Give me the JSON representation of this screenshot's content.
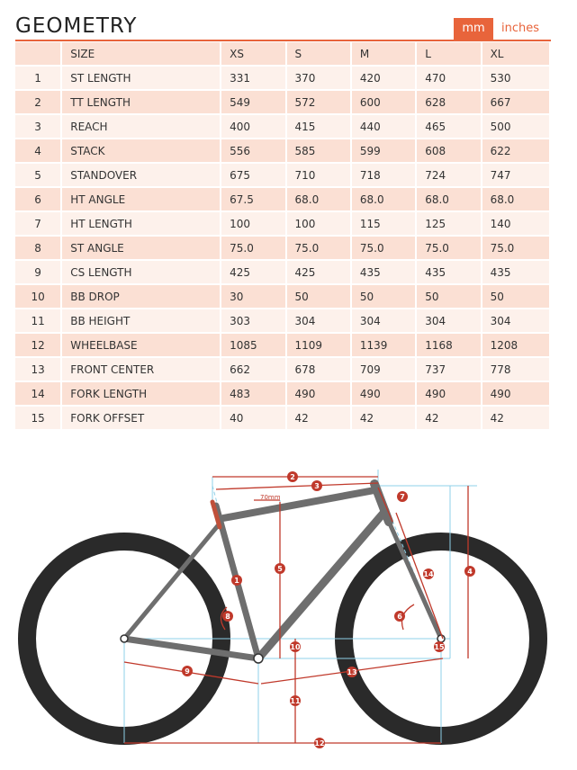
{
  "header": {
    "title": "GEOMETRY",
    "unit_mm": "mm",
    "unit_inches": "inches"
  },
  "table": {
    "columns": [
      "",
      "SIZE",
      "XS",
      "S",
      "M",
      "L",
      "XL"
    ],
    "rows": [
      [
        "1",
        "ST LENGTH",
        "331",
        "370",
        "420",
        "470",
        "530"
      ],
      [
        "2",
        "TT LENGTH",
        "549",
        "572",
        "600",
        "628",
        "667"
      ],
      [
        "3",
        "REACH",
        "400",
        "415",
        "440",
        "465",
        "500"
      ],
      [
        "4",
        "STACK",
        "556",
        "585",
        "599",
        "608",
        "622"
      ],
      [
        "5",
        "STANDOVER",
        "675",
        "710",
        "718",
        "724",
        "747"
      ],
      [
        "6",
        "HT ANGLE",
        "67.5",
        "68.0",
        "68.0",
        "68.0",
        "68.0"
      ],
      [
        "7",
        "HT LENGTH",
        "100",
        "100",
        "115",
        "125",
        "140"
      ],
      [
        "8",
        "ST ANGLE",
        "75.0",
        "75.0",
        "75.0",
        "75.0",
        "75.0"
      ],
      [
        "9",
        "CS LENGTH",
        "425",
        "425",
        "435",
        "435",
        "435"
      ],
      [
        "10",
        "BB DROP",
        "30",
        "50",
        "50",
        "50",
        "50"
      ],
      [
        "11",
        "BB HEIGHT",
        "303",
        "304",
        "304",
        "304",
        "304"
      ],
      [
        "12",
        "WHEELBASE",
        "1085",
        "1109",
        "1139",
        "1168",
        "1208"
      ],
      [
        "13",
        "FRONT CENTER",
        "662",
        "678",
        "709",
        "737",
        "778"
      ],
      [
        "14",
        "FORK LENGTH",
        "483",
        "490",
        "490",
        "490",
        "490"
      ],
      [
        "15",
        "FORK OFFSET",
        "40",
        "42",
        "42",
        "42",
        "42"
      ]
    ]
  },
  "diagram": {
    "standover_note": "70mm",
    "markers": [
      "1",
      "2",
      "3",
      "4",
      "5",
      "6",
      "7",
      "8",
      "9",
      "10",
      "11",
      "12",
      "13",
      "14",
      "15"
    ]
  },
  "colors": {
    "accent": "#e8643b",
    "row_light": "#fdf1eb",
    "row_dark": "#fbe0d4",
    "frame": "#6e6e6e",
    "tire": "#2a2a2a",
    "guide": "#8fd0e8"
  }
}
